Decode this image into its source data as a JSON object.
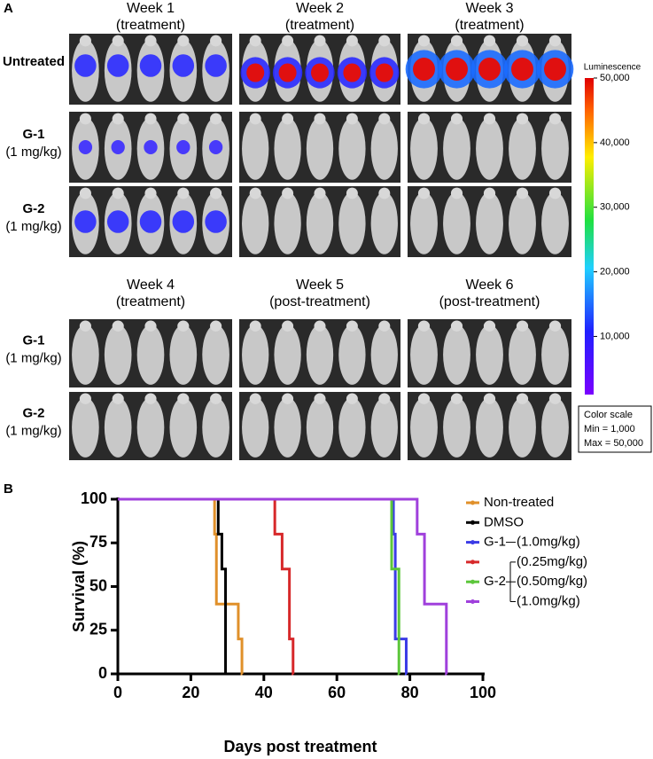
{
  "panel_a": {
    "label": "A",
    "top": {
      "columns": [
        [
          "Week 1",
          "(treatment)"
        ],
        [
          "Week 2",
          "(treatment)"
        ],
        [
          "Week 3",
          "(treatment)"
        ]
      ],
      "rows": [
        [
          "Untreated"
        ],
        [
          "G-1",
          "(1 mg/kg)"
        ],
        [
          "G-2",
          "(1 mg/kg)"
        ]
      ]
    },
    "bottom": {
      "columns": [
        [
          "Week 4",
          "(treatment)"
        ],
        [
          "Week 5",
          "(post-treatment)"
        ],
        [
          "Week 6",
          "(post-treatment)"
        ]
      ],
      "rows": [
        [
          "G-1",
          "(1 mg/kg)"
        ],
        [
          "G-2",
          "(1 mg/kg)"
        ]
      ]
    },
    "colorbar": {
      "title": "Luminescence",
      "lim": [
        1000,
        50000
      ],
      "ticks": [
        {
          "value": 10000,
          "label": "10,000"
        },
        {
          "value": 20000,
          "label": "20,000"
        },
        {
          "value": 30000,
          "label": "30,000"
        },
        {
          "value": 40000,
          "label": "40,000"
        },
        {
          "value": 50000,
          "label": "50,000"
        }
      ],
      "note": [
        "Color scale",
        "Min = 1,000",
        "Max = 50,000"
      ]
    }
  },
  "panel_b": {
    "label": "B"
  },
  "chart_data": {
    "type": "line",
    "step": "post",
    "ylabel": "Survival (%)",
    "xlabel": "Days post treatment",
    "xlim": [
      0,
      100
    ],
    "xticks": [
      0,
      20,
      40,
      60,
      80,
      100
    ],
    "ylim": [
      0,
      100
    ],
    "yticks": [
      0,
      25,
      50,
      75,
      100
    ],
    "series": [
      {
        "name": "Non-treated",
        "color": "#e0902a",
        "x": [
          0,
          26.5,
          27,
          33,
          34
        ],
        "values": [
          100,
          80,
          40,
          20,
          0
        ]
      },
      {
        "name": "DMSO",
        "color": "#000000",
        "x": [
          0,
          27.5,
          28.5,
          29.5
        ],
        "values": [
          100,
          80,
          60,
          0
        ]
      },
      {
        "group": "G-1",
        "name": "(1.0mg/kg)",
        "color": "#3b3be6",
        "x": [
          0,
          75.5,
          76,
          79
        ],
        "values": [
          100,
          80,
          20,
          0
        ]
      },
      {
        "group": "G-2",
        "name": "(0.25mg/kg)",
        "color": "#d7282a",
        "x": [
          0,
          43,
          45,
          47,
          48
        ],
        "values": [
          100,
          80,
          60,
          20,
          0
        ]
      },
      {
        "group": "G-2",
        "name": "(0.50mg/kg)",
        "color": "#5cc63a",
        "x": [
          0,
          75,
          77
        ],
        "values": [
          100,
          60,
          0
        ]
      },
      {
        "group": "G-2",
        "name": "(1.0mg/kg)",
        "color": "#a040dc",
        "x": [
          0,
          82,
          84,
          90
        ],
        "values": [
          100,
          80,
          40,
          0
        ]
      }
    ]
  }
}
